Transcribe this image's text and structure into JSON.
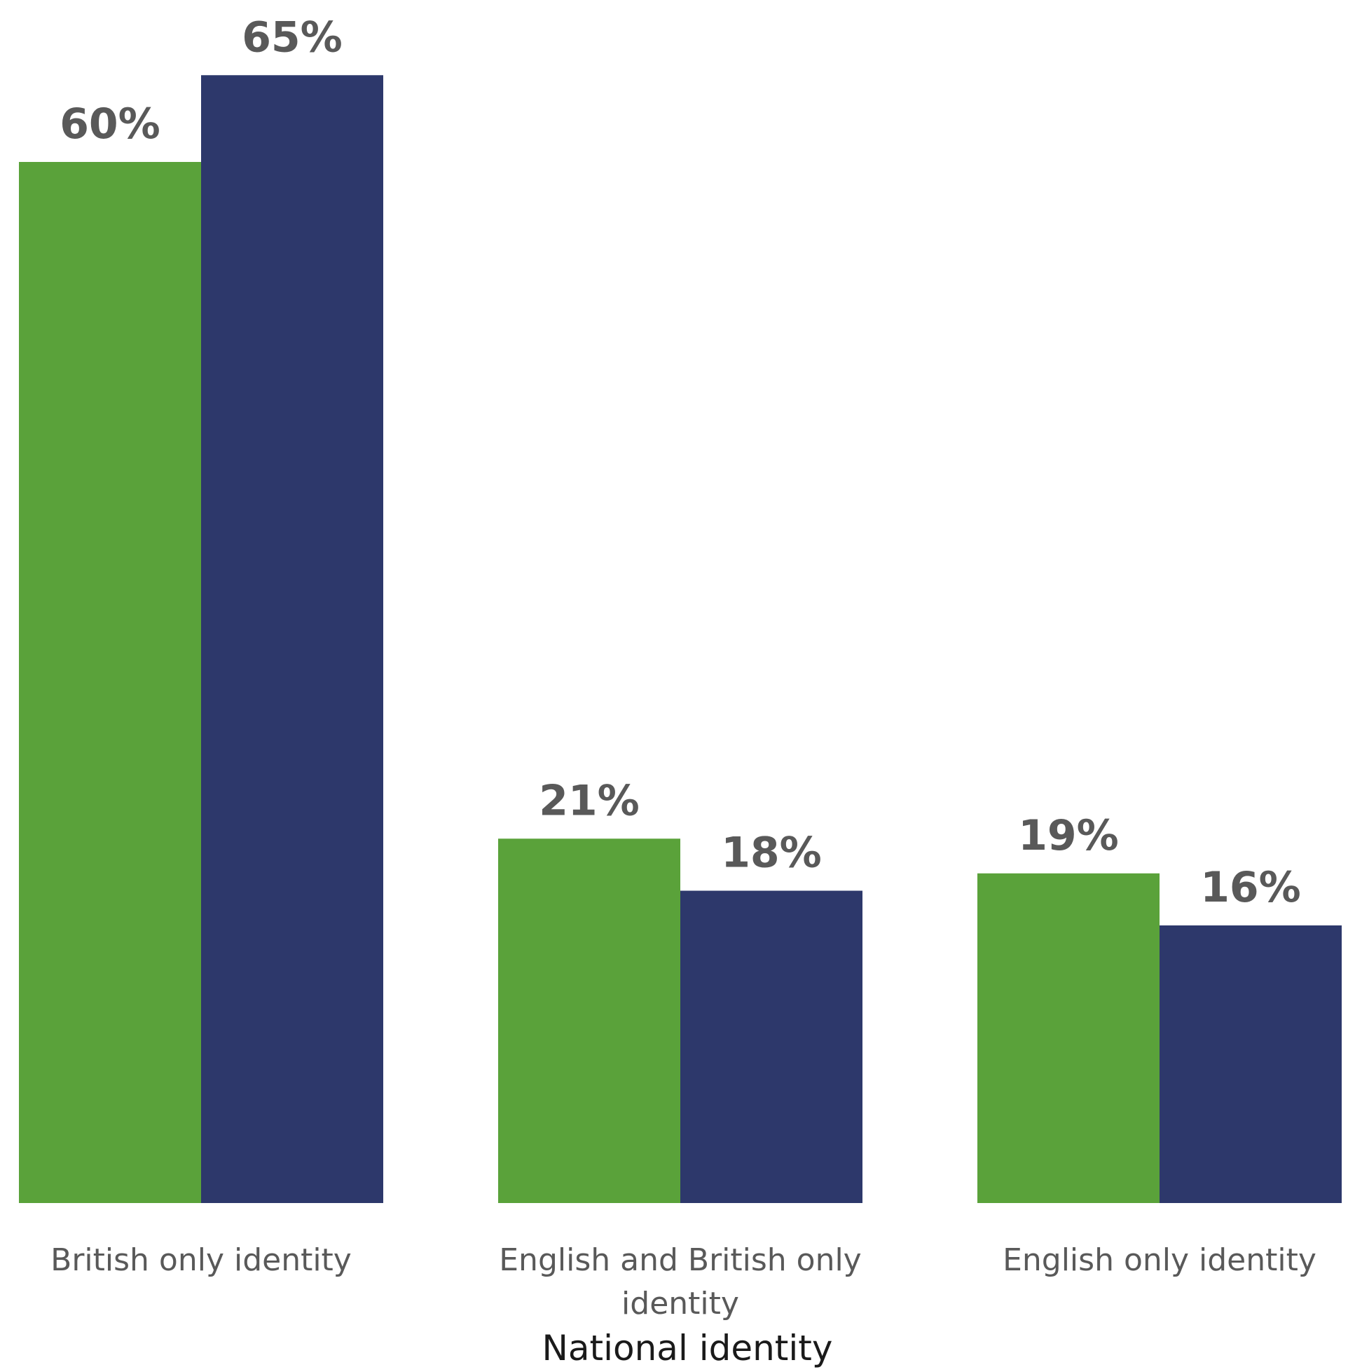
{
  "chart_data": {
    "type": "bar",
    "categories": [
      [
        "British only identity"
      ],
      [
        "English and British only",
        "identity"
      ],
      [
        "English only identity"
      ]
    ],
    "series": [
      {
        "values": [
          60,
          21,
          19
        ],
        "labels": [
          "60%",
          "21%",
          "19%"
        ],
        "color": "#5aa23a"
      },
      {
        "values": [
          65,
          18,
          16
        ],
        "labels": [
          "65%",
          "18%",
          "16%"
        ],
        "color": "#2d386b"
      }
    ],
    "xlabel": "National identity",
    "ylabel": "",
    "ylim": [
      0,
      65
    ],
    "grid": false,
    "legend": "none"
  }
}
